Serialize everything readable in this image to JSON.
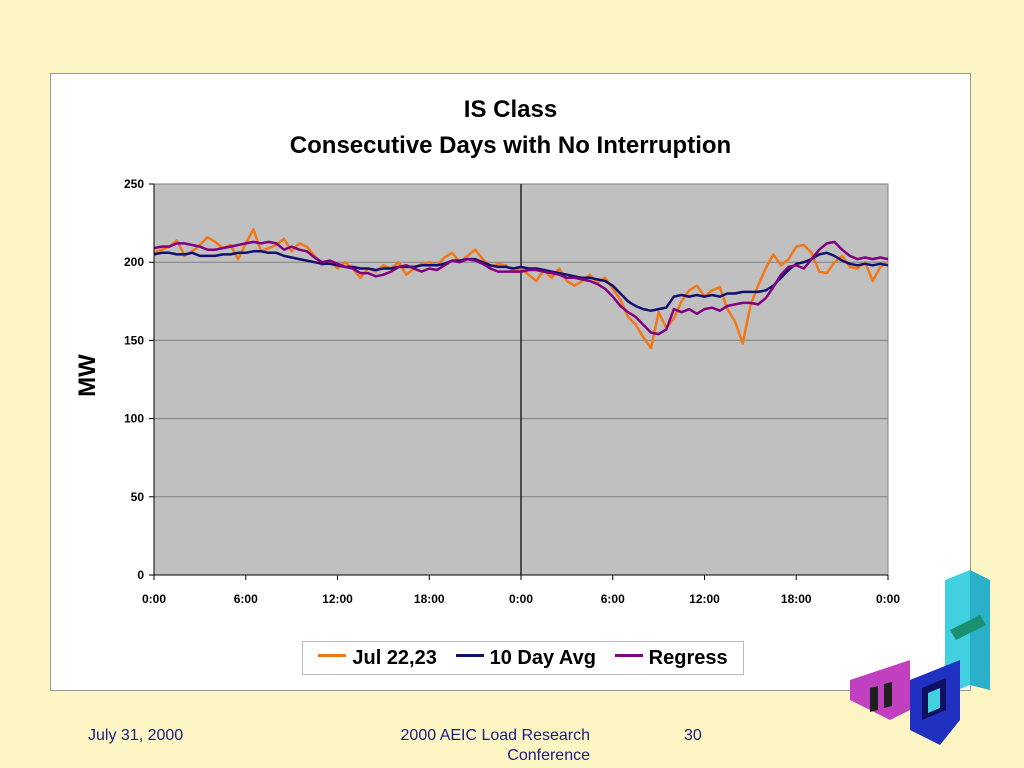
{
  "footer": {
    "date": "July 31, 2000",
    "conference": "2000 AEIC Load Research Conference",
    "page_number": "30"
  },
  "chart_data": {
    "type": "line",
    "title": "IS Class",
    "subtitle": "Consecutive Days with No Interruption",
    "xlabel": "",
    "ylabel": "MW",
    "ylim": [
      0,
      250
    ],
    "yticks": [
      0,
      50,
      100,
      150,
      200,
      250
    ],
    "xlim": [
      0,
      48
    ],
    "xticks": [
      0,
      6,
      12,
      18,
      24,
      30,
      36,
      42,
      48
    ],
    "xtick_labels": [
      "0:00",
      "6:00",
      "12:00",
      "18:00",
      "0:00",
      "6:00",
      "12:00",
      "18:00",
      "0:00"
    ],
    "grid": true,
    "day_divider_x": 24,
    "legend_position": "bottom",
    "series": [
      {
        "name": "Jul 22,23",
        "color": "#f07818",
        "x": [
          0,
          0.5,
          1,
          1.5,
          2,
          2.5,
          3,
          3.5,
          4,
          4.5,
          5,
          5.5,
          6,
          6.5,
          7,
          7.5,
          8,
          8.5,
          9,
          9.5,
          10,
          10.5,
          11,
          11.5,
          12,
          12.5,
          13,
          13.5,
          14,
          14.5,
          15,
          15.5,
          16,
          16.5,
          17,
          17.5,
          18,
          18.5,
          19,
          19.5,
          20,
          20.5,
          21,
          21.5,
          22,
          22.5,
          23,
          23.5,
          24,
          24.5,
          25,
          25.5,
          26,
          26.5,
          27,
          27.5,
          28,
          28.5,
          29,
          29.5,
          30,
          30.5,
          31,
          31.5,
          32,
          32.5,
          33,
          33.5,
          34,
          34.5,
          35,
          35.5,
          36,
          36.5,
          37,
          37.5,
          38,
          38.5,
          39,
          39.5,
          40,
          40.5,
          41,
          41.5,
          42,
          42.5,
          43,
          43.5,
          44,
          44.5,
          45,
          45.5,
          46,
          46.5,
          47,
          47.5,
          48
        ],
        "values": [
          206,
          208,
          210,
          214,
          204,
          207,
          211,
          216,
          213,
          209,
          211,
          202,
          212,
          221,
          207,
          209,
          211,
          215,
          207,
          212,
          210,
          204,
          198,
          201,
          196,
          200,
          196,
          190,
          196,
          194,
          198,
          196,
          200,
          192,
          196,
          199,
          200,
          198,
          203,
          206,
          200,
          204,
          208,
          202,
          197,
          199,
          198,
          194,
          196,
          192,
          188,
          195,
          190,
          196,
          188,
          185,
          188,
          192,
          187,
          190,
          183,
          176,
          165,
          160,
          152,
          145,
          168,
          158,
          164,
          175,
          182,
          185,
          178,
          182,
          184,
          170,
          162,
          148,
          172,
          185,
          196,
          205,
          198,
          202,
          210,
          211,
          206,
          194,
          193,
          200,
          204,
          197,
          196,
          200,
          188,
          197,
          200
        ]
      },
      {
        "name": "10 Day Avg",
        "color": "#101070",
        "x": [
          0,
          0.5,
          1,
          1.5,
          2,
          2.5,
          3,
          3.5,
          4,
          4.5,
          5,
          5.5,
          6,
          6.5,
          7,
          7.5,
          8,
          8.5,
          9,
          9.5,
          10,
          10.5,
          11,
          11.5,
          12,
          12.5,
          13,
          13.5,
          14,
          14.5,
          15,
          15.5,
          16,
          16.5,
          17,
          17.5,
          18,
          18.5,
          19,
          19.5,
          20,
          20.5,
          21,
          21.5,
          22,
          22.5,
          23,
          23.5,
          24,
          24.5,
          25,
          25.5,
          26,
          26.5,
          27,
          27.5,
          28,
          28.5,
          29,
          29.5,
          30,
          30.5,
          31,
          31.5,
          32,
          32.5,
          33,
          33.5,
          34,
          34.5,
          35,
          35.5,
          36,
          36.5,
          37,
          37.5,
          38,
          38.5,
          39,
          39.5,
          40,
          40.5,
          41,
          41.5,
          42,
          42.5,
          43,
          43.5,
          44,
          44.5,
          45,
          45.5,
          46,
          46.5,
          47,
          47.5,
          48
        ],
        "values": [
          205,
          206,
          206,
          205,
          205,
          206,
          204,
          204,
          204,
          205,
          205,
          206,
          206,
          207,
          207,
          206,
          206,
          204,
          203,
          202,
          201,
          200,
          199,
          199,
          198,
          197,
          197,
          196,
          196,
          195,
          196,
          196,
          197,
          197,
          197,
          198,
          198,
          198,
          199,
          201,
          201,
          202,
          202,
          200,
          198,
          197,
          197,
          196,
          197,
          196,
          196,
          195,
          194,
          193,
          192,
          191,
          190,
          190,
          189,
          188,
          185,
          180,
          175,
          172,
          170,
          169,
          170,
          171,
          178,
          179,
          178,
          179,
          178,
          179,
          178,
          180,
          180,
          181,
          181,
          181,
          182,
          185,
          190,
          195,
          199,
          200,
          202,
          205,
          206,
          204,
          201,
          199,
          198,
          199,
          198,
          199,
          198
        ]
      },
      {
        "name": "Regress",
        "color": "#800080",
        "x": [
          0,
          0.5,
          1,
          1.5,
          2,
          2.5,
          3,
          3.5,
          4,
          4.5,
          5,
          5.5,
          6,
          6.5,
          7,
          7.5,
          8,
          8.5,
          9,
          9.5,
          10,
          10.5,
          11,
          11.5,
          12,
          12.5,
          13,
          13.5,
          14,
          14.5,
          15,
          15.5,
          16,
          16.5,
          17,
          17.5,
          18,
          18.5,
          19,
          19.5,
          20,
          20.5,
          21,
          21.5,
          22,
          22.5,
          23,
          23.5,
          24,
          24.5,
          25,
          25.5,
          26,
          26.5,
          27,
          27.5,
          28,
          28.5,
          29,
          29.5,
          30,
          30.5,
          31,
          31.5,
          32,
          32.5,
          33,
          33.5,
          34,
          34.5,
          35,
          35.5,
          36,
          36.5,
          37,
          37.5,
          38,
          38.5,
          39,
          39.5,
          40,
          40.5,
          41,
          41.5,
          42,
          42.5,
          43,
          43.5,
          44,
          44.5,
          45,
          45.5,
          46,
          46.5,
          47,
          47.5,
          48
        ],
        "values": [
          209,
          210,
          210,
          212,
          212,
          211,
          210,
          208,
          208,
          209,
          210,
          211,
          212,
          213,
          212,
          213,
          212,
          208,
          210,
          208,
          207,
          203,
          200,
          201,
          199,
          197,
          196,
          193,
          193,
          191,
          192,
          194,
          197,
          198,
          196,
          194,
          196,
          195,
          198,
          201,
          200,
          202,
          201,
          199,
          196,
          194,
          194,
          194,
          194,
          195,
          195,
          194,
          193,
          192,
          190,
          190,
          189,
          188,
          186,
          183,
          178,
          172,
          168,
          165,
          160,
          155,
          154,
          157,
          170,
          168,
          170,
          167,
          170,
          171,
          169,
          172,
          173,
          174,
          174,
          173,
          177,
          184,
          192,
          197,
          198,
          196,
          202,
          208,
          212,
          213,
          208,
          204,
          202,
          203,
          202,
          203,
          202
        ]
      }
    ]
  }
}
